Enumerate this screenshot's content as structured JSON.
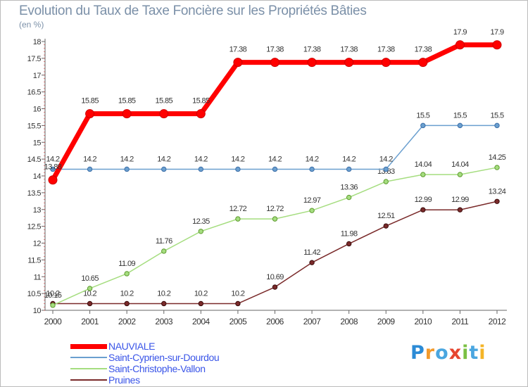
{
  "chart_data": {
    "type": "line",
    "title": "Evolution du Taux de Taxe Foncière sur les Propriétés Bâties",
    "ylabel": "(en %)",
    "xlabel": "",
    "ylim": [
      10,
      18
    ],
    "ytick_step": 0.5,
    "categories": [
      "2000",
      "2001",
      "2002",
      "2003",
      "2004",
      "2005",
      "2006",
      "2007",
      "2008",
      "2009",
      "2010",
      "2011",
      "2012"
    ],
    "series": [
      {
        "name": "NAUVIALE",
        "color": "#ff0000",
        "values": [
          13.88,
          15.85,
          15.85,
          15.85,
          15.85,
          17.38,
          17.38,
          17.38,
          17.38,
          17.38,
          17.38,
          17.9,
          17.9
        ],
        "labels": [
          "13.88",
          "15.85",
          "15.85",
          "15.85",
          "15.85",
          "17.38",
          "17.38",
          "17.38",
          "17.38",
          "17.38",
          "17.38",
          "17.9",
          "17.9"
        ]
      },
      {
        "name": "Saint-Cyprien-sur-Dourdou",
        "color": "#6a9fcf",
        "values": [
          14.2,
          14.2,
          14.2,
          14.2,
          14.2,
          14.2,
          14.2,
          14.2,
          14.2,
          14.2,
          15.5,
          15.5,
          15.5
        ],
        "labels": [
          "14.2",
          "14.2",
          "14.2",
          "14.2",
          "14.2",
          "14.2",
          "14.2",
          "14.2",
          "14.2",
          "14.2",
          "15.5",
          "15.5",
          "15.5"
        ]
      },
      {
        "name": "Saint-Christophe-Vallon",
        "color": "#a5dd7f",
        "values": [
          10.15,
          10.65,
          11.09,
          11.76,
          12.35,
          12.72,
          12.72,
          12.97,
          13.36,
          13.83,
          14.04,
          14.04,
          14.25
        ],
        "labels": [
          "10.15",
          "10.65",
          "11.09",
          "11.76",
          "12.35",
          "12.72",
          "12.72",
          "12.97",
          "13.36",
          "13.83",
          "14.04",
          "14.04",
          "14.25"
        ]
      },
      {
        "name": "Pruines",
        "color": "#7a2a2a",
        "values": [
          10.2,
          10.2,
          10.2,
          10.2,
          10.2,
          10.2,
          10.69,
          11.42,
          11.98,
          12.51,
          12.99,
          12.99,
          13.24
        ],
        "labels": [
          "10.2",
          "10.2",
          "10.2",
          "10.2",
          "10.2",
          "10.2",
          "10.69",
          "11.42",
          "11.98",
          "12.51",
          "12.99",
          "12.99",
          "13.24"
        ]
      }
    ],
    "legend_position": "bottom-left",
    "grid": false
  },
  "brand": {
    "name": "Proxiti",
    "letters": [
      {
        "ch": "P",
        "color": "#2b8bd6"
      },
      {
        "ch": "r",
        "color": "#f39a2b"
      },
      {
        "ch": "o",
        "color": "#4aa6e0"
      },
      {
        "ch": "x",
        "color": "#e6452f"
      },
      {
        "ch": "i",
        "color": "#7bc043"
      },
      {
        "ch": "t",
        "color": "#4aa6e0"
      },
      {
        "ch": "i",
        "color": "#f4b427"
      }
    ]
  }
}
